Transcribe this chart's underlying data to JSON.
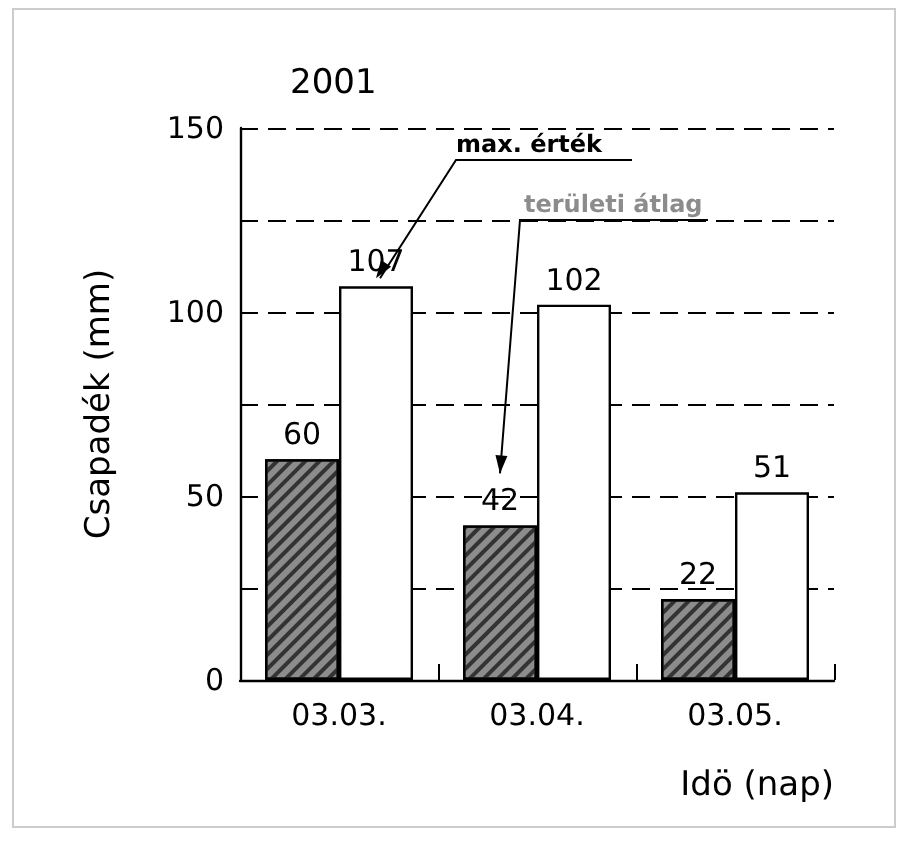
{
  "chart_data": {
    "type": "bar",
    "title": "2001",
    "xlabel": "Idö (nap)",
    "ylabel": "Csapadék (mm)",
    "categories": [
      "03.03.",
      "03.04.",
      "03.05."
    ],
    "series": [
      {
        "name": "területi átlag",
        "color": "#8c8c8c",
        "values": [
          60,
          42,
          22
        ]
      },
      {
        "name": "max. érték",
        "color": "#ffffff",
        "values": [
          107,
          102,
          51
        ]
      }
    ],
    "ylim": [
      0,
      150
    ],
    "yticks": [
      0,
      {
        "value": 25,
        "label": null
      },
      50,
      {
        "value": 75,
        "label": null
      },
      100,
      {
        "value": 125,
        "label": null
      },
      150
    ],
    "grid": "y",
    "data_labels": true,
    "legend": false
  }
}
